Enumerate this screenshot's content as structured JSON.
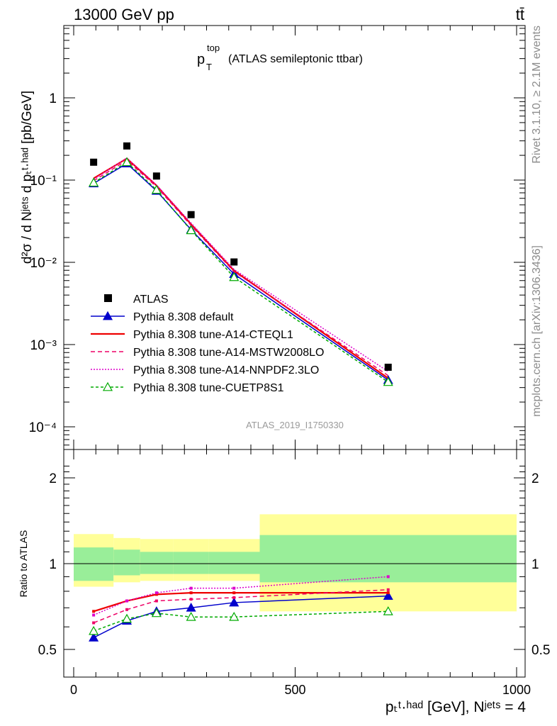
{
  "header": {
    "energy": "13000 GeV pp",
    "process": "tt̄"
  },
  "side_labels": {
    "rivet": "Rivet 3.1.10, ≥ 2.1M events",
    "mcplots": "mcplots.cern.ch [arXiv:1306.3436]"
  },
  "plot": {
    "title_main": "p",
    "title_sup": "top",
    "title_sub": "T",
    "title_rest": "(ATLAS semileptonic ttbar)",
    "analysis_id": "ATLAS_2019_I1750330",
    "ylabel": "d²σ / d Nʲᵉᵗˢ d pₜᵗ·ʰᵃᵈ [pb/GeV]",
    "ratio_ylabel": "Ratio to ATLAS",
    "xlabel": "pₜᵗ·ʰᵃᵈ [GeV], Nʲᵉᵗˢ = 4"
  },
  "chart_data": {
    "type": "line",
    "x": [
      45,
      120,
      187,
      265,
      362,
      710
    ],
    "bins": [
      [
        0,
        90
      ],
      [
        90,
        150
      ],
      [
        150,
        225
      ],
      [
        225,
        305
      ],
      [
        305,
        420
      ],
      [
        420,
        1000
      ]
    ],
    "xlim": [
      -30,
      1010
    ],
    "ylim_main": [
      5e-05,
      5
    ],
    "ylim_ratio": [
      0.4,
      2.4
    ],
    "y_scale_main": "log",
    "x_ticks": [
      0,
      500,
      1000
    ],
    "y_ticks_main": [
      "1",
      "10⁻¹",
      "10⁻²",
      "10⁻³",
      "10⁻⁴"
    ],
    "y_ticks_ratio": [
      "2",
      "1",
      "0.5"
    ],
    "legend_position": "bottom-left",
    "data": {
      "name": "ATLAS",
      "values": [
        0.165,
        0.26,
        0.112,
        0.038,
        0.0101,
        0.00053
      ]
    },
    "uncertainty_bands_ratio": {
      "inner": [
        [
          0.87,
          1.14
        ],
        [
          0.91,
          1.12
        ],
        [
          0.92,
          1.1
        ],
        [
          0.92,
          1.1
        ],
        [
          0.92,
          1.1
        ],
        [
          0.86,
          1.26
        ]
      ],
      "outer": [
        [
          0.83,
          1.27
        ],
        [
          0.86,
          1.23
        ],
        [
          0.87,
          1.22
        ],
        [
          0.87,
          1.22
        ],
        [
          0.87,
          1.22
        ],
        [
          0.68,
          1.49
        ]
      ]
    },
    "series": [
      {
        "name": "Pythia 8.308 default",
        "color": "#0000cc",
        "dash": "",
        "marker": "triangle-filled",
        "values": [
          0.091,
          0.159,
          0.074,
          0.025,
          0.0072,
          0.00037
        ],
        "ratio": [
          0.55,
          0.63,
          0.68,
          0.7,
          0.73,
          0.77
        ]
      },
      {
        "name": "Pythia 8.308 tune-A14-CTEQL1",
        "color": "#ee0000",
        "dash": "",
        "marker": "none",
        "values": [
          0.105,
          0.183,
          0.086,
          0.029,
          0.0079,
          0.00039
        ],
        "ratio": [
          0.68,
          0.74,
          0.78,
          0.79,
          0.79,
          0.79
        ]
      },
      {
        "name": "Pythia 8.308 tune-A14-MSTW2008LO",
        "color": "#ee0066",
        "dash": "6,4",
        "marker": "none",
        "values": [
          0.098,
          0.174,
          0.083,
          0.028,
          0.0077,
          0.00042
        ],
        "ratio": [
          0.62,
          0.69,
          0.74,
          0.75,
          0.76,
          0.81
        ]
      },
      {
        "name": "Pythia 8.308 tune-A14-NNPDF2.3LO",
        "color": "#dd00cc",
        "dash": "2,2",
        "marker": "none",
        "values": [
          0.102,
          0.186,
          0.087,
          0.03,
          0.0082,
          0.00047
        ],
        "ratio": [
          0.66,
          0.74,
          0.79,
          0.82,
          0.82,
          0.9
        ]
      },
      {
        "name": "Pythia 8.308 tune-CUETP8S1",
        "color": "#00aa00",
        "dash": "4,3",
        "marker": "triangle-open",
        "values": [
          0.093,
          0.165,
          0.076,
          0.0245,
          0.0066,
          0.00035
        ],
        "ratio": [
          0.58,
          0.64,
          0.67,
          0.65,
          0.65,
          0.68
        ]
      }
    ]
  }
}
